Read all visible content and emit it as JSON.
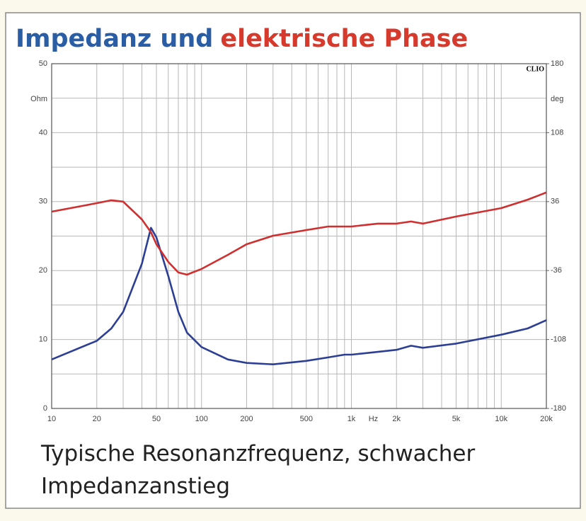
{
  "chart_data": {
    "type": "line",
    "title": [
      {
        "text": "Impedanz und",
        "color": "#2b5da5"
      },
      {
        "text": "elektrische Phase",
        "color": "#d63a2c"
      }
    ],
    "caption": "Typische Resonanzfrequenz, schwacher Impedanzanstieg",
    "brand": "CLIO",
    "x_label": "Hz",
    "y_label": "Ohm",
    "y2_label": "deg",
    "x_scale": "log",
    "x": [
      10,
      20,
      25,
      30,
      40,
      46,
      50,
      60,
      70,
      80,
      100,
      150,
      200,
      300,
      500,
      700,
      900,
      1000,
      1500,
      2000,
      2500,
      3000,
      5000,
      10000,
      15000,
      20000
    ],
    "series": [
      {
        "name": "Impedanz",
        "color": "#2d3f95",
        "values": [
          7.1,
          9.8,
          11.6,
          14,
          21,
          26.2,
          24.8,
          19.2,
          14,
          11,
          8.9,
          7.1,
          6.6,
          6.4,
          6.9,
          7.4,
          7.8,
          7.8,
          8.2,
          8.5,
          9.1,
          8.8,
          9.4,
          10.7,
          11.6,
          12.8
        ]
      },
      {
        "name": "Phase",
        "color": "#cf2f2f",
        "axis": "y2",
        "values": [
          25.5,
          34.4,
          37.4,
          36,
          17.4,
          4,
          -8.5,
          -27,
          -38,
          -40.3,
          -34.3,
          -19.6,
          -8.5,
          0.4,
          6.3,
          10,
          10,
          10,
          13,
          13,
          15.2,
          13,
          20.4,
          29.2,
          38,
          45.5
        ]
      }
    ],
    "xlim": [
      10,
      20000
    ],
    "xticks": [
      10,
      20,
      50,
      100,
      200,
      500,
      {
        "value": 1000,
        "label": "1k"
      },
      {
        "value": 2000,
        "label": "2k"
      },
      {
        "value": 5000,
        "label": "5k"
      },
      {
        "value": 10000,
        "label": "10k"
      },
      {
        "value": 20000,
        "label": "20k"
      }
    ],
    "xminor": [
      30,
      40,
      60,
      70,
      80,
      90,
      300,
      400,
      600,
      700,
      800,
      900,
      3000,
      4000,
      6000,
      7000,
      8000,
      9000
    ],
    "ylim": [
      0,
      50
    ],
    "yticks": [
      0,
      10,
      20,
      30,
      40,
      50
    ],
    "yminor": [
      5,
      15,
      25,
      35,
      45
    ],
    "y2lim": [
      -180,
      180
    ],
    "y2ticks": [
      -180,
      -108,
      -36,
      36,
      108,
      180
    ],
    "grid": true
  }
}
